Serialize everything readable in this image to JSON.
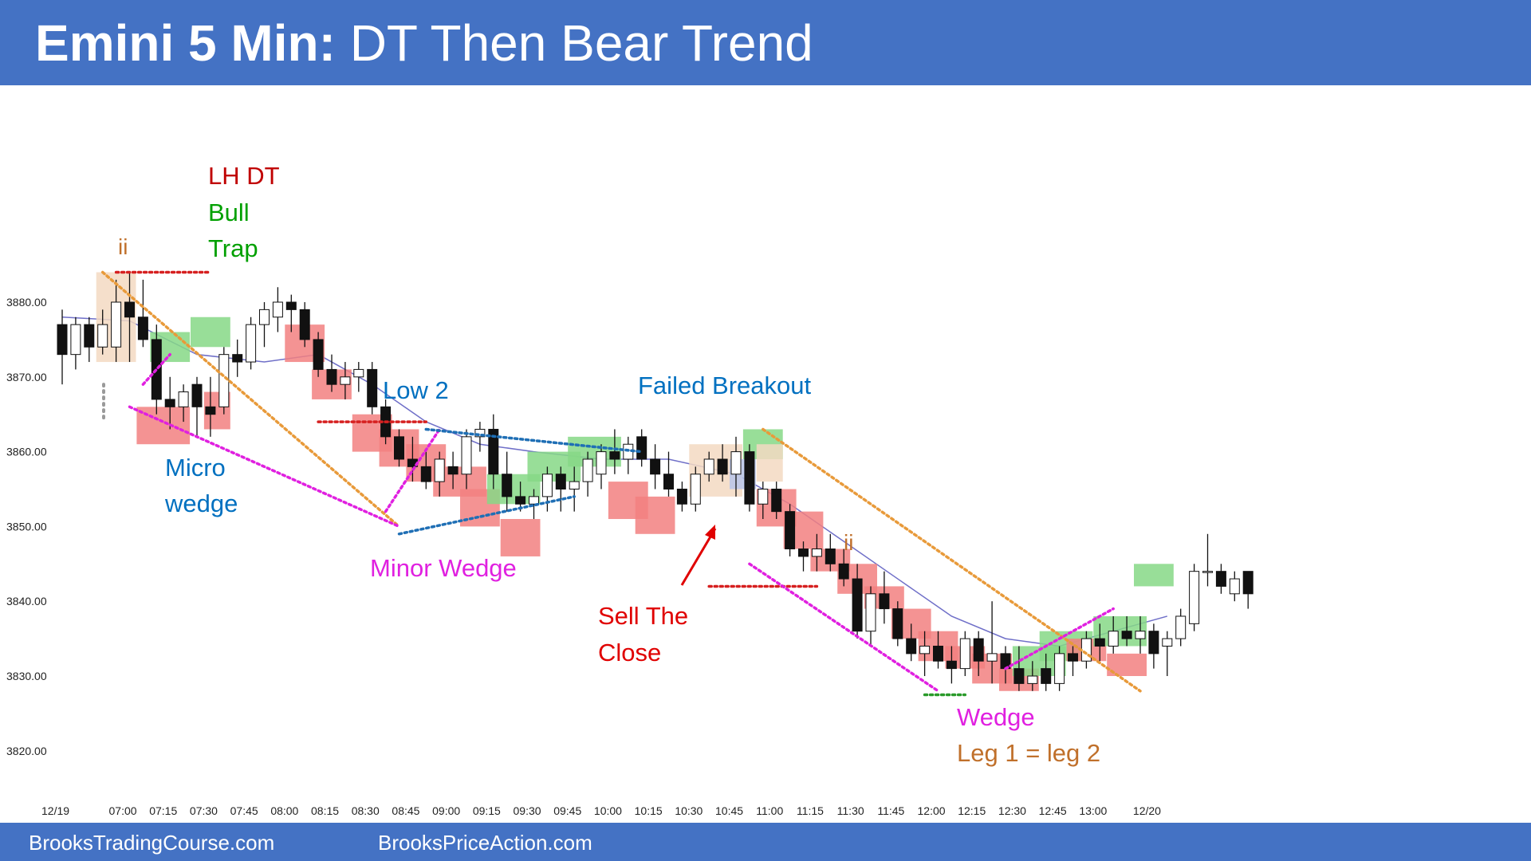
{
  "header": {
    "title_bold": "Emini 5 Min:",
    "title_rest": "DT Then Bear Trend",
    "background": "#4472c4"
  },
  "footer": {
    "left": "BrooksTradingCourse.com",
    "right": "BrooksPriceAction.com"
  },
  "chart_data": {
    "type": "candlestick",
    "title": "Emini 5 Min: DT Then Bear Trend",
    "xlabel": "",
    "ylabel": "",
    "ylim": [
      3816,
      3892
    ],
    "y_ticks": [
      {
        "value": 3880,
        "label": "3880.00"
      },
      {
        "value": 3870,
        "label": "3870.00"
      },
      {
        "value": 3860,
        "label": "3860.00"
      },
      {
        "value": 3850,
        "label": "3850.00"
      },
      {
        "value": 3840,
        "label": "3840.00"
      },
      {
        "value": 3830,
        "label": "3830.00"
      },
      {
        "value": 3820,
        "label": "3820.00"
      }
    ],
    "x_ticks": [
      {
        "bar": -0.5,
        "label": "12/19"
      },
      {
        "bar": 4.5,
        "label": "07:00"
      },
      {
        "bar": 7.5,
        "label": "07:15"
      },
      {
        "bar": 10.5,
        "label": "07:30"
      },
      {
        "bar": 13.5,
        "label": "07:45"
      },
      {
        "bar": 16.5,
        "label": "08:00"
      },
      {
        "bar": 19.5,
        "label": "08:15"
      },
      {
        "bar": 22.5,
        "label": "08:30"
      },
      {
        "bar": 25.5,
        "label": "08:45"
      },
      {
        "bar": 28.5,
        "label": "09:00"
      },
      {
        "bar": 31.5,
        "label": "09:15"
      },
      {
        "bar": 34.5,
        "label": "09:30"
      },
      {
        "bar": 37.5,
        "label": "09:45"
      },
      {
        "bar": 40.5,
        "label": "10:00"
      },
      {
        "bar": 43.5,
        "label": "10:15"
      },
      {
        "bar": 46.5,
        "label": "10:30"
      },
      {
        "bar": 49.5,
        "label": "10:45"
      },
      {
        "bar": 52.5,
        "label": "11:00"
      },
      {
        "bar": 55.5,
        "label": "11:15"
      },
      {
        "bar": 58.5,
        "label": "11:30"
      },
      {
        "bar": 61.5,
        "label": "11:45"
      },
      {
        "bar": 64.5,
        "label": "12:00"
      },
      {
        "bar": 67.5,
        "label": "12:15"
      },
      {
        "bar": 70.5,
        "label": "12:30"
      },
      {
        "bar": 73.5,
        "label": "12:45"
      },
      {
        "bar": 76.5,
        "label": "13:00"
      },
      {
        "bar": 80.5,
        "label": "12/20"
      }
    ],
    "candles": [
      [
        3877,
        3879,
        3869,
        3873
      ],
      [
        3873,
        3878,
        3871,
        3877
      ],
      [
        3877,
        3878,
        3872,
        3874
      ],
      [
        3874,
        3879,
        3873,
        3877
      ],
      [
        3874,
        3883,
        3872,
        3880
      ],
      [
        3880,
        3884,
        3872,
        3878
      ],
      [
        3878,
        3883,
        3874,
        3875
      ],
      [
        3875,
        3877,
        3865,
        3867
      ],
      [
        3867,
        3870,
        3863,
        3866
      ],
      [
        3866,
        3869,
        3864,
        3868
      ],
      [
        3869,
        3870,
        3862,
        3866
      ],
      [
        3866,
        3870,
        3862,
        3865
      ],
      [
        3866,
        3874,
        3865,
        3873
      ],
      [
        3873,
        3875,
        3870,
        3872
      ],
      [
        3872,
        3878,
        3871,
        3877
      ],
      [
        3877,
        3880,
        3874,
        3879
      ],
      [
        3878,
        3882,
        3876,
        3880
      ],
      [
        3880,
        3881,
        3876,
        3879
      ],
      [
        3879,
        3880,
        3874,
        3875
      ],
      [
        3875,
        3876,
        3870,
        3871
      ],
      [
        3871,
        3873,
        3868,
        3869
      ],
      [
        3869,
        3872,
        3867,
        3870
      ],
      [
        3870,
        3872,
        3868,
        3871
      ],
      [
        3871,
        3872,
        3865,
        3866
      ],
      [
        3866,
        3867,
        3861,
        3862
      ],
      [
        3862,
        3863,
        3858,
        3859
      ],
      [
        3859,
        3862,
        3856,
        3858
      ],
      [
        3858,
        3860,
        3855,
        3856
      ],
      [
        3856,
        3860,
        3854,
        3859
      ],
      [
        3858,
        3860,
        3855,
        3857
      ],
      [
        3857,
        3863,
        3855,
        3862
      ],
      [
        3862,
        3864,
        3860,
        3863
      ],
      [
        3863,
        3865,
        3855,
        3857
      ],
      [
        3857,
        3860,
        3852,
        3854
      ],
      [
        3854,
        3856,
        3852,
        3853
      ],
      [
        3853,
        3855,
        3851,
        3854
      ],
      [
        3854,
        3858,
        3852,
        3857
      ],
      [
        3857,
        3858,
        3852,
        3855
      ],
      [
        3855,
        3858,
        3852,
        3856
      ],
      [
        3856,
        3860,
        3854,
        3859
      ],
      [
        3857,
        3861,
        3855,
        3860
      ],
      [
        3860,
        3863,
        3857,
        3859
      ],
      [
        3859,
        3862,
        3857,
        3861
      ],
      [
        3862,
        3863,
        3858,
        3859
      ],
      [
        3859,
        3861,
        3855,
        3857
      ],
      [
        3857,
        3860,
        3854,
        3855
      ],
      [
        3855,
        3856,
        3852,
        3853
      ],
      [
        3853,
        3858,
        3852,
        3857
      ],
      [
        3857,
        3860,
        3856,
        3859
      ],
      [
        3859,
        3861,
        3856,
        3857
      ],
      [
        3857,
        3862,
        3854,
        3860
      ],
      [
        3860,
        3861,
        3852,
        3853
      ],
      [
        3853,
        3856,
        3851,
        3855
      ],
      [
        3855,
        3856,
        3851,
        3852
      ],
      [
        3852,
        3853,
        3846,
        3847
      ],
      [
        3847,
        3848,
        3844,
        3846
      ],
      [
        3846,
        3849,
        3844,
        3847
      ],
      [
        3847,
        3849,
        3844,
        3845
      ],
      [
        3845,
        3847,
        3842,
        3843
      ],
      [
        3843,
        3845,
        3835,
        3836
      ],
      [
        3836,
        3842,
        3834,
        3841
      ],
      [
        3841,
        3844,
        3837,
        3839
      ],
      [
        3839,
        3840,
        3834,
        3835
      ],
      [
        3835,
        3837,
        3832,
        3833
      ],
      [
        3833,
        3836,
        3830,
        3834
      ],
      [
        3834,
        3836,
        3831,
        3832
      ],
      [
        3832,
        3834,
        3829,
        3831
      ],
      [
        3831,
        3836,
        3830,
        3835
      ],
      [
        3835,
        3836,
        3830,
        3832
      ],
      [
        3832,
        3840,
        3829,
        3833
      ],
      [
        3833,
        3834,
        3829,
        3831
      ],
      [
        3831,
        3834,
        3828,
        3829
      ],
      [
        3829,
        3832,
        3828,
        3830
      ],
      [
        3831,
        3833,
        3828,
        3829
      ],
      [
        3829,
        3834,
        3828,
        3833
      ],
      [
        3833,
        3834,
        3830,
        3832
      ],
      [
        3832,
        3836,
        3831,
        3835
      ],
      [
        3835,
        3837,
        3832,
        3834
      ],
      [
        3834,
        3838,
        3833,
        3836
      ],
      [
        3836,
        3838,
        3834,
        3835
      ],
      [
        3835,
        3838,
        3833,
        3836
      ],
      [
        3836,
        3837,
        3831,
        3833
      ],
      [
        3834,
        3836,
        3830,
        3835
      ],
      [
        3835,
        3839,
        3834,
        3838
      ],
      [
        3837,
        3845,
        3836,
        3844
      ],
      [
        3844,
        3849,
        3842,
        3844
      ],
      [
        3844,
        3845,
        3841,
        3842
      ],
      [
        3841,
        3844,
        3840,
        3843
      ],
      [
        3844,
        3844,
        3839,
        3841
      ]
    ],
    "series": [
      {
        "type": "ema",
        "color": "#6f6fc8",
        "values": [
          [
            0,
            3878
          ],
          [
            5,
            3877.5
          ],
          [
            10,
            3873
          ],
          [
            15,
            3872
          ],
          [
            19,
            3873
          ],
          [
            23,
            3869
          ],
          [
            27,
            3864
          ],
          [
            31,
            3861
          ],
          [
            35,
            3860
          ],
          [
            40,
            3859
          ],
          [
            45,
            3859
          ],
          [
            50,
            3857
          ],
          [
            54,
            3853
          ],
          [
            58,
            3848
          ],
          [
            62,
            3843
          ],
          [
            66,
            3838
          ],
          [
            70,
            3835
          ],
          [
            74,
            3834
          ],
          [
            78,
            3836
          ],
          [
            82,
            3838
          ]
        ]
      }
    ],
    "annotations": [
      {
        "text": "ii",
        "color": "#c0702b"
      },
      {
        "text": "LH DT",
        "color": "#c00000"
      },
      {
        "text": "Bull",
        "color": "#00a000"
      },
      {
        "text": "Trap",
        "color": "#00a000"
      },
      {
        "text": "Micro",
        "color": "#0070c0"
      },
      {
        "text": "wedge",
        "color": "#0070c0"
      },
      {
        "text": "Low 2",
        "color": "#0070c0"
      },
      {
        "text": "Minor Wedge",
        "color": "#e020e0"
      },
      {
        "text": "Failed Breakout",
        "color": "#0070c0"
      },
      {
        "text": "Sell The",
        "color": "#e00000"
      },
      {
        "text": "Close",
        "color": "#e00000"
      },
      {
        "text": "ii",
        "color": "#c0702b"
      },
      {
        "text": "Wedge",
        "color": "#e020e0"
      },
      {
        "text": "Leg 1 = leg 2",
        "color": "#c0702b"
      }
    ],
    "highlight_colors": {
      "sell": "#f28080",
      "buy": "#86d886",
      "inside": "#f3d9c2",
      "neutral": "#b8c6ea"
    },
    "line_colors": {
      "trend": "#e89a3a",
      "wedge": "#e020e0",
      "channel": "#1f6fb5",
      "level": "#d62020"
    }
  }
}
